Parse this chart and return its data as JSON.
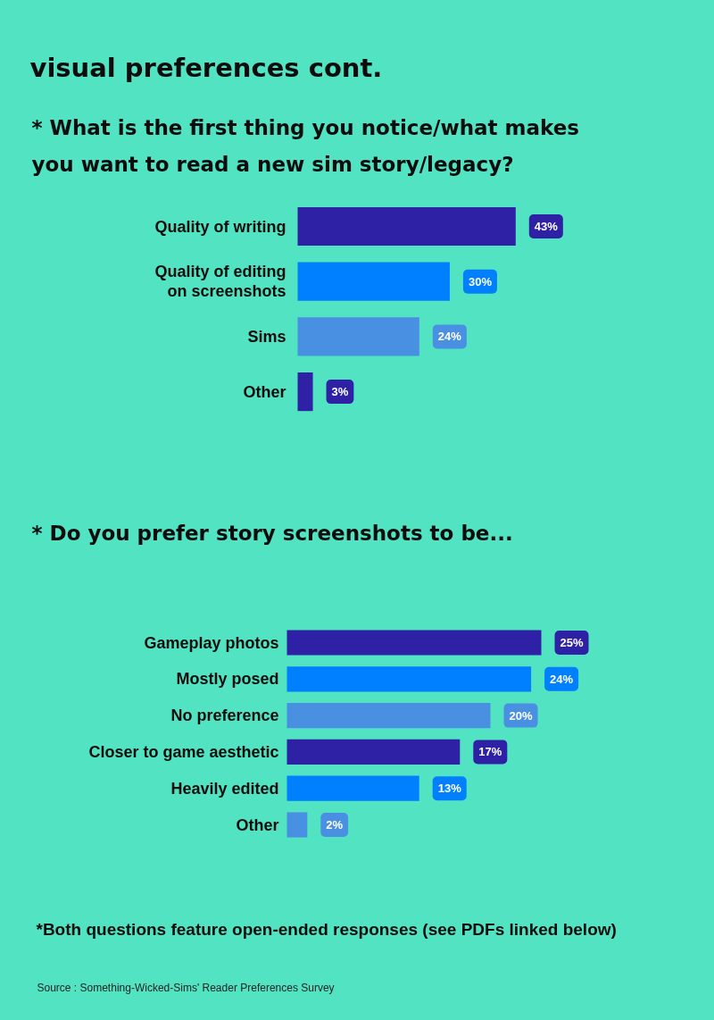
{
  "chart_data": [
    {
      "type": "bar",
      "orientation": "horizontal",
      "title": "visual preferences cont.",
      "subtitle": "* What is the first thing you notice/what makes you want to read a new sim story/legacy?",
      "categories": [
        "Quality of writing",
        "Quality of editing on screenshots",
        "Sims",
        "Other"
      ],
      "values": [
        43,
        30,
        24,
        3
      ],
      "colors": [
        "#2e21a6",
        "#0080ff",
        "#4a90e2",
        "#2e21a6"
      ],
      "value_labels": [
        "43%",
        "30%",
        "24%",
        "3%"
      ]
    },
    {
      "type": "bar",
      "orientation": "horizontal",
      "title": "* Do you prefer story screenshots to be...",
      "categories": [
        "Gameplay photos",
        "Mostly posed",
        "No preference",
        "Closer to game aesthetic",
        "Heavily edited",
        "Other"
      ],
      "values": [
        25,
        24,
        20,
        17,
        13,
        2
      ],
      "colors": [
        "#2e21a6",
        "#0080ff",
        "#4a90e2",
        "#2e21a6",
        "#0080ff",
        "#4a90e2"
      ],
      "value_labels": [
        "25%",
        "24%",
        "20%",
        "17%",
        "13%",
        "2%"
      ],
      "annotations": [
        "*Both questions feature open-ended responses (see PDFs linked below)",
        "Source : Something-Wicked-Sims' Reader Preferences Survey"
      ]
    }
  ]
}
